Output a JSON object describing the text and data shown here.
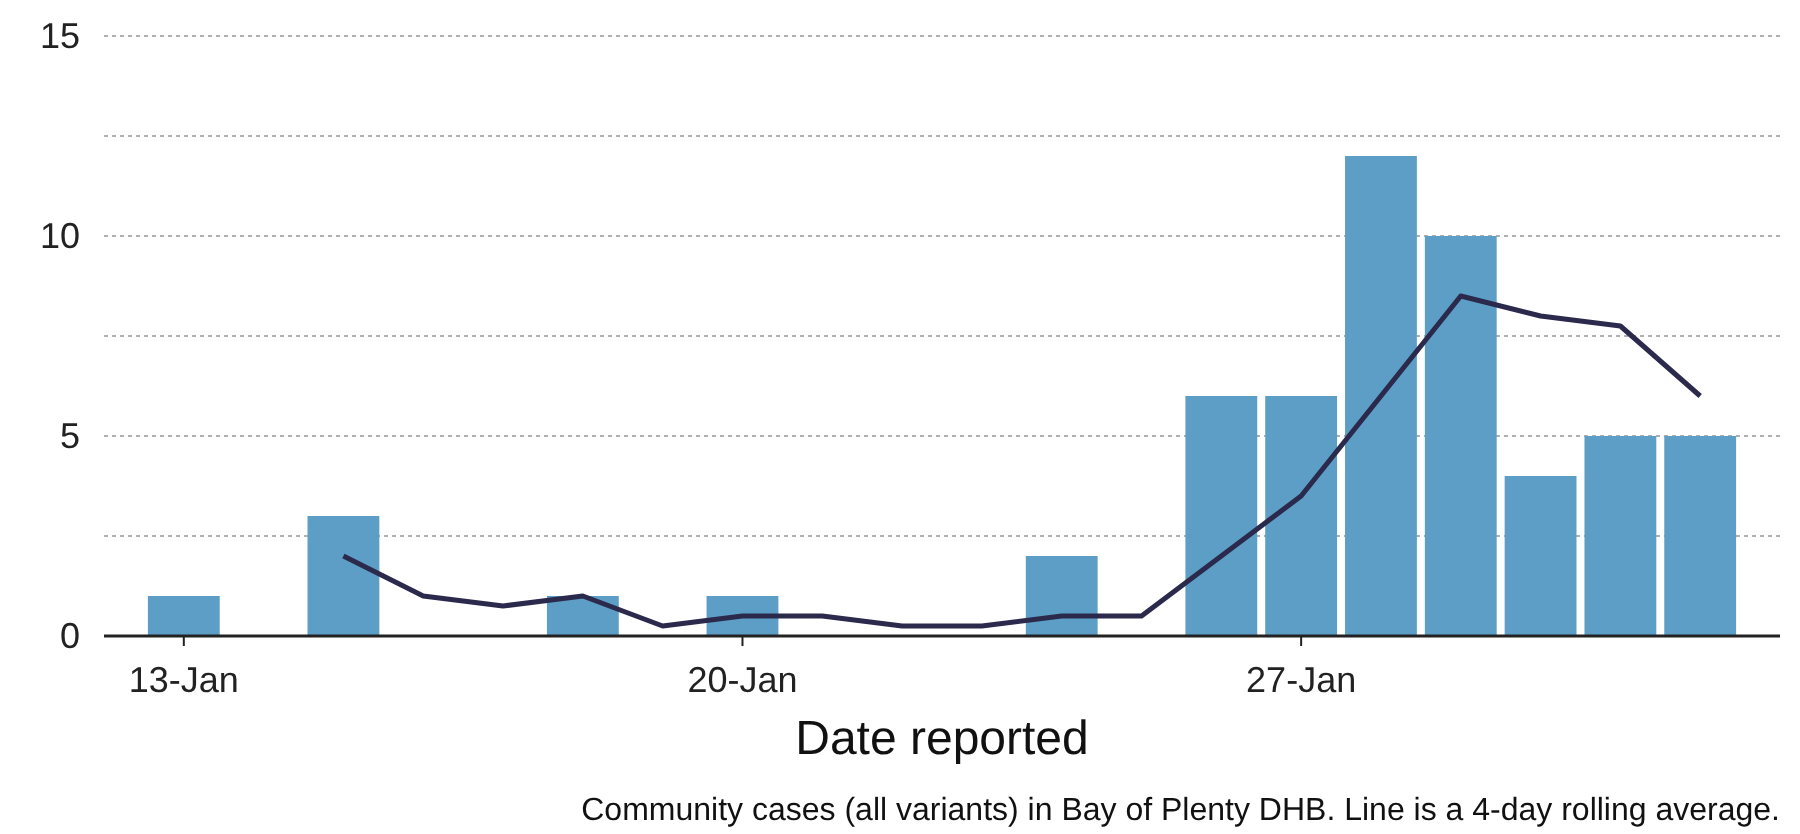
{
  "chart_data": {
    "type": "bar",
    "xlabel": "Date reported",
    "annotations": [
      "Community cases (all variants) in Bay of Plenty DHB. Line is a 4-day rolling average."
    ],
    "xlim": [
      "--01-12",
      "--02-02"
    ],
    "xticks": [
      {
        "value": "--01-13",
        "label": "13-Jan"
      },
      {
        "value": "--01-20",
        "label": "20-Jan"
      },
      {
        "value": "--01-27",
        "label": "27-Jan"
      }
    ],
    "ylim": [
      0,
      15
    ],
    "yticks": [
      0,
      {
        "value": 2.5,
        "label": null
      },
      5,
      {
        "value": 7.5,
        "label": null
      },
      10,
      {
        "value": 12.5,
        "label": null
      },
      15
    ],
    "grid": "y",
    "series": [
      {
        "color": "#5d9ec6",
        "x": [
          "--01-13",
          "--01-15",
          "--01-18",
          "--01-20",
          "--01-24",
          "--01-26",
          "--01-27",
          "--01-28",
          "--01-29",
          "--01-30",
          "--01-31",
          "--02-01"
        ],
        "values": [
          1,
          3,
          1,
          1,
          2,
          6,
          6,
          12,
          10,
          4,
          5,
          5
        ]
      },
      {
        "type": "line",
        "color": "#2b2a4c",
        "marker": "none",
        "line_style": "solid",
        "x": [
          "--01-15",
          "--01-16",
          "--01-17",
          "--01-18",
          "--01-19",
          "--01-20",
          "--01-21",
          "--01-22",
          "--01-23",
          "--01-24",
          "--01-25",
          "--01-26",
          "--01-27",
          "--01-28",
          "--01-29",
          "--01-30",
          "--01-31",
          "--02-01"
        ],
        "values": [
          2,
          1,
          0.75,
          1,
          0.25,
          0.5,
          0.5,
          0.25,
          0.25,
          0.5,
          0.5,
          2,
          3.5,
          6,
          8.5,
          8,
          7.75,
          6
        ]
      }
    ]
  }
}
